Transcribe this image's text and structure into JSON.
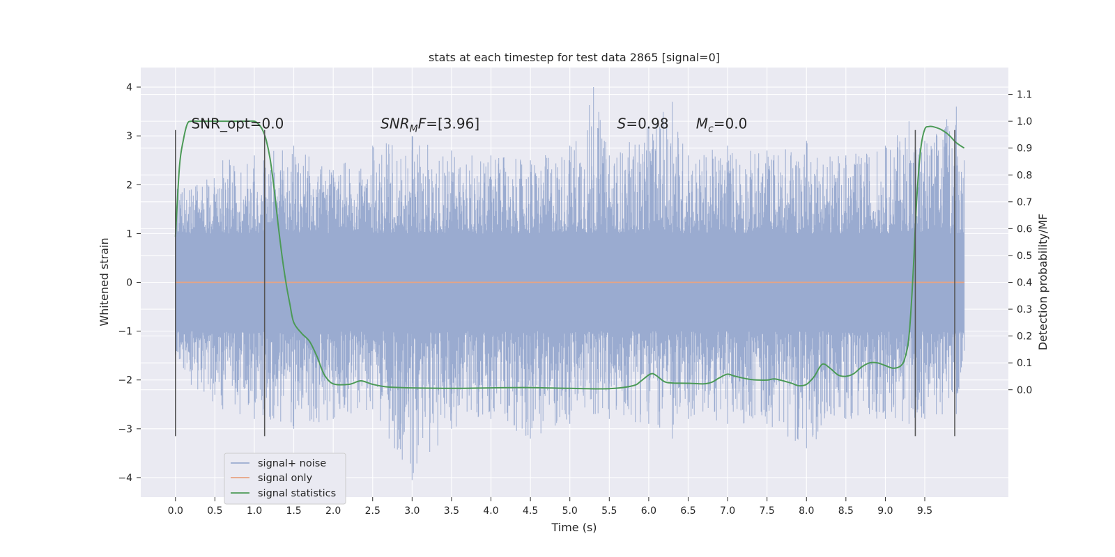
{
  "chart_data": {
    "type": "line",
    "title": "stats at each timestep for test data 2865 [signal=0]",
    "xlabel": "Time (s)",
    "ylabel": "Whitened strain",
    "y2label": "Detection probability/MF",
    "xlim": [
      -0.44,
      10.56
    ],
    "ylim": [
      -4.4,
      4.4
    ],
    "y2lim": [
      -0.4,
      1.2
    ],
    "x_ticks": [
      0.0,
      0.5,
      1.0,
      1.5,
      2.0,
      2.5,
      3.0,
      3.5,
      4.0,
      4.5,
      5.0,
      5.5,
      6.0,
      6.5,
      7.0,
      7.5,
      8.0,
      8.5,
      9.0,
      9.5
    ],
    "x_tick_labels": [
      "0.0",
      "0.5",
      "1.0",
      "1.5",
      "2.0",
      "2.5",
      "3.0",
      "3.5",
      "4.0",
      "4.5",
      "5.0",
      "5.5",
      "6.0",
      "6.5",
      "7.0",
      "7.5",
      "8.0",
      "8.5",
      "9.0",
      "9.5"
    ],
    "y_ticks": [
      4,
      3,
      2,
      1,
      0,
      -1,
      -2,
      -3,
      -4
    ],
    "y_tick_labels": [
      "4",
      "3",
      "2",
      "1",
      "0",
      "−1",
      "−2",
      "−3",
      "−4"
    ],
    "y2_ticks": [
      1.1,
      1.0,
      0.9,
      0.8,
      0.7,
      0.6,
      0.5,
      0.4,
      0.3,
      0.2,
      0.1,
      0.0
    ],
    "y2_tick_labels": [
      "1.1",
      "1.0",
      "0.9",
      "0.8",
      "0.7",
      "0.6",
      "0.5",
      "0.4",
      "0.3",
      "0.2",
      "0.1",
      "0.0"
    ],
    "grid": true,
    "legend_position": "bottom-left",
    "annotations": [
      {
        "text": "SNR_opt=0.0",
        "x": 0.2,
        "y": 3.15
      },
      {
        "text": "SNR_MF=[3.96]",
        "x": 2.6,
        "y": 3.15
      },
      {
        "text": "S=0.98",
        "x": 5.6,
        "y": 3.15
      },
      {
        "text": "M_c=0.0",
        "x": 6.6,
        "y": 3.15
      }
    ],
    "vlines": {
      "x": [
        0.0,
        1.13,
        9.38,
        9.88
      ],
      "ymin": -3.15,
      "ymax": 3.12,
      "color": "#555555"
    },
    "series": [
      {
        "name": "signal+ noise",
        "axis": "left",
        "color": "#9aabd0",
        "x_range": [
          0.0,
          10.0
        ],
        "envelope": {
          "x": [
            0,
            0.2,
            0.6,
            1.0,
            1.5,
            2.0,
            2.5,
            3.0,
            3.5,
            4.0,
            4.5,
            5.0,
            5.3,
            5.5,
            6.0,
            6.3,
            6.5,
            7.0,
            7.5,
            8.0,
            8.5,
            9.0,
            9.3,
            9.5,
            9.9,
            10.0
          ],
          "upper": [
            2.0,
            1.9,
            2.5,
            2.6,
            2.8,
            2.3,
            2.8,
            3.0,
            2.7,
            2.6,
            2.5,
            2.8,
            4.0,
            2.6,
            3.2,
            3.7,
            2.6,
            2.8,
            2.7,
            2.9,
            2.6,
            2.8,
            3.3,
            2.9,
            3.6,
            2.5
          ],
          "lower": [
            -1.5,
            -2.1,
            -2.6,
            -2.8,
            -3.0,
            -2.8,
            -2.6,
            -4.05,
            -3.0,
            -2.8,
            -3.2,
            -2.9,
            -2.7,
            -2.8,
            -2.9,
            -3.2,
            -2.8,
            -2.9,
            -2.9,
            -3.4,
            -2.8,
            -2.8,
            -2.9,
            -2.8,
            -2.7,
            -1.4
          ],
          "core": [
            1.0,
            -1.0
          ]
        }
      },
      {
        "name": "signal only",
        "axis": "left",
        "color": "#e8a382",
        "x": [
          0.0,
          10.0
        ],
        "values": [
          0.0,
          0.0
        ]
      },
      {
        "name": "signal statistics",
        "axis": "right",
        "color": "#4c9a57",
        "x": [
          0.0,
          0.05,
          0.1,
          0.15,
          0.2,
          0.3,
          0.5,
          0.7,
          0.9,
          1.0,
          1.05,
          1.1,
          1.15,
          1.2,
          1.25,
          1.3,
          1.35,
          1.4,
          1.45,
          1.5,
          1.6,
          1.7,
          1.8,
          1.85,
          1.9,
          2.0,
          2.2,
          2.35,
          2.5,
          2.7,
          3.0,
          3.5,
          4.0,
          4.5,
          5.0,
          5.5,
          5.8,
          5.9,
          6.0,
          6.05,
          6.1,
          6.2,
          6.3,
          6.5,
          6.7,
          6.8,
          6.9,
          7.0,
          7.1,
          7.3,
          7.5,
          7.6,
          7.8,
          7.9,
          8.0,
          8.1,
          8.2,
          8.3,
          8.4,
          8.5,
          8.6,
          8.7,
          8.8,
          8.9,
          9.0,
          9.1,
          9.2,
          9.25,
          9.3,
          9.35,
          9.4,
          9.45,
          9.5,
          9.55,
          9.6,
          9.7,
          9.8,
          9.9,
          10.0
        ],
        "values": [
          0.57,
          0.83,
          0.93,
          0.99,
          1.0,
          1.0,
          1.0,
          1.0,
          1.0,
          1.0,
          0.99,
          0.97,
          0.93,
          0.86,
          0.75,
          0.62,
          0.5,
          0.4,
          0.32,
          0.25,
          0.21,
          0.18,
          0.12,
          0.08,
          0.05,
          0.022,
          0.02,
          0.033,
          0.02,
          0.01,
          0.007,
          0.005,
          0.007,
          0.008,
          0.005,
          0.004,
          0.015,
          0.032,
          0.055,
          0.06,
          0.052,
          0.03,
          0.025,
          0.024,
          0.022,
          0.028,
          0.045,
          0.058,
          0.05,
          0.038,
          0.036,
          0.04,
          0.025,
          0.015,
          0.02,
          0.05,
          0.095,
          0.08,
          0.055,
          0.05,
          0.06,
          0.085,
          0.1,
          0.1,
          0.09,
          0.08,
          0.09,
          0.12,
          0.2,
          0.42,
          0.72,
          0.9,
          0.97,
          0.98,
          0.98,
          0.97,
          0.95,
          0.92,
          0.9
        ]
      }
    ]
  }
}
